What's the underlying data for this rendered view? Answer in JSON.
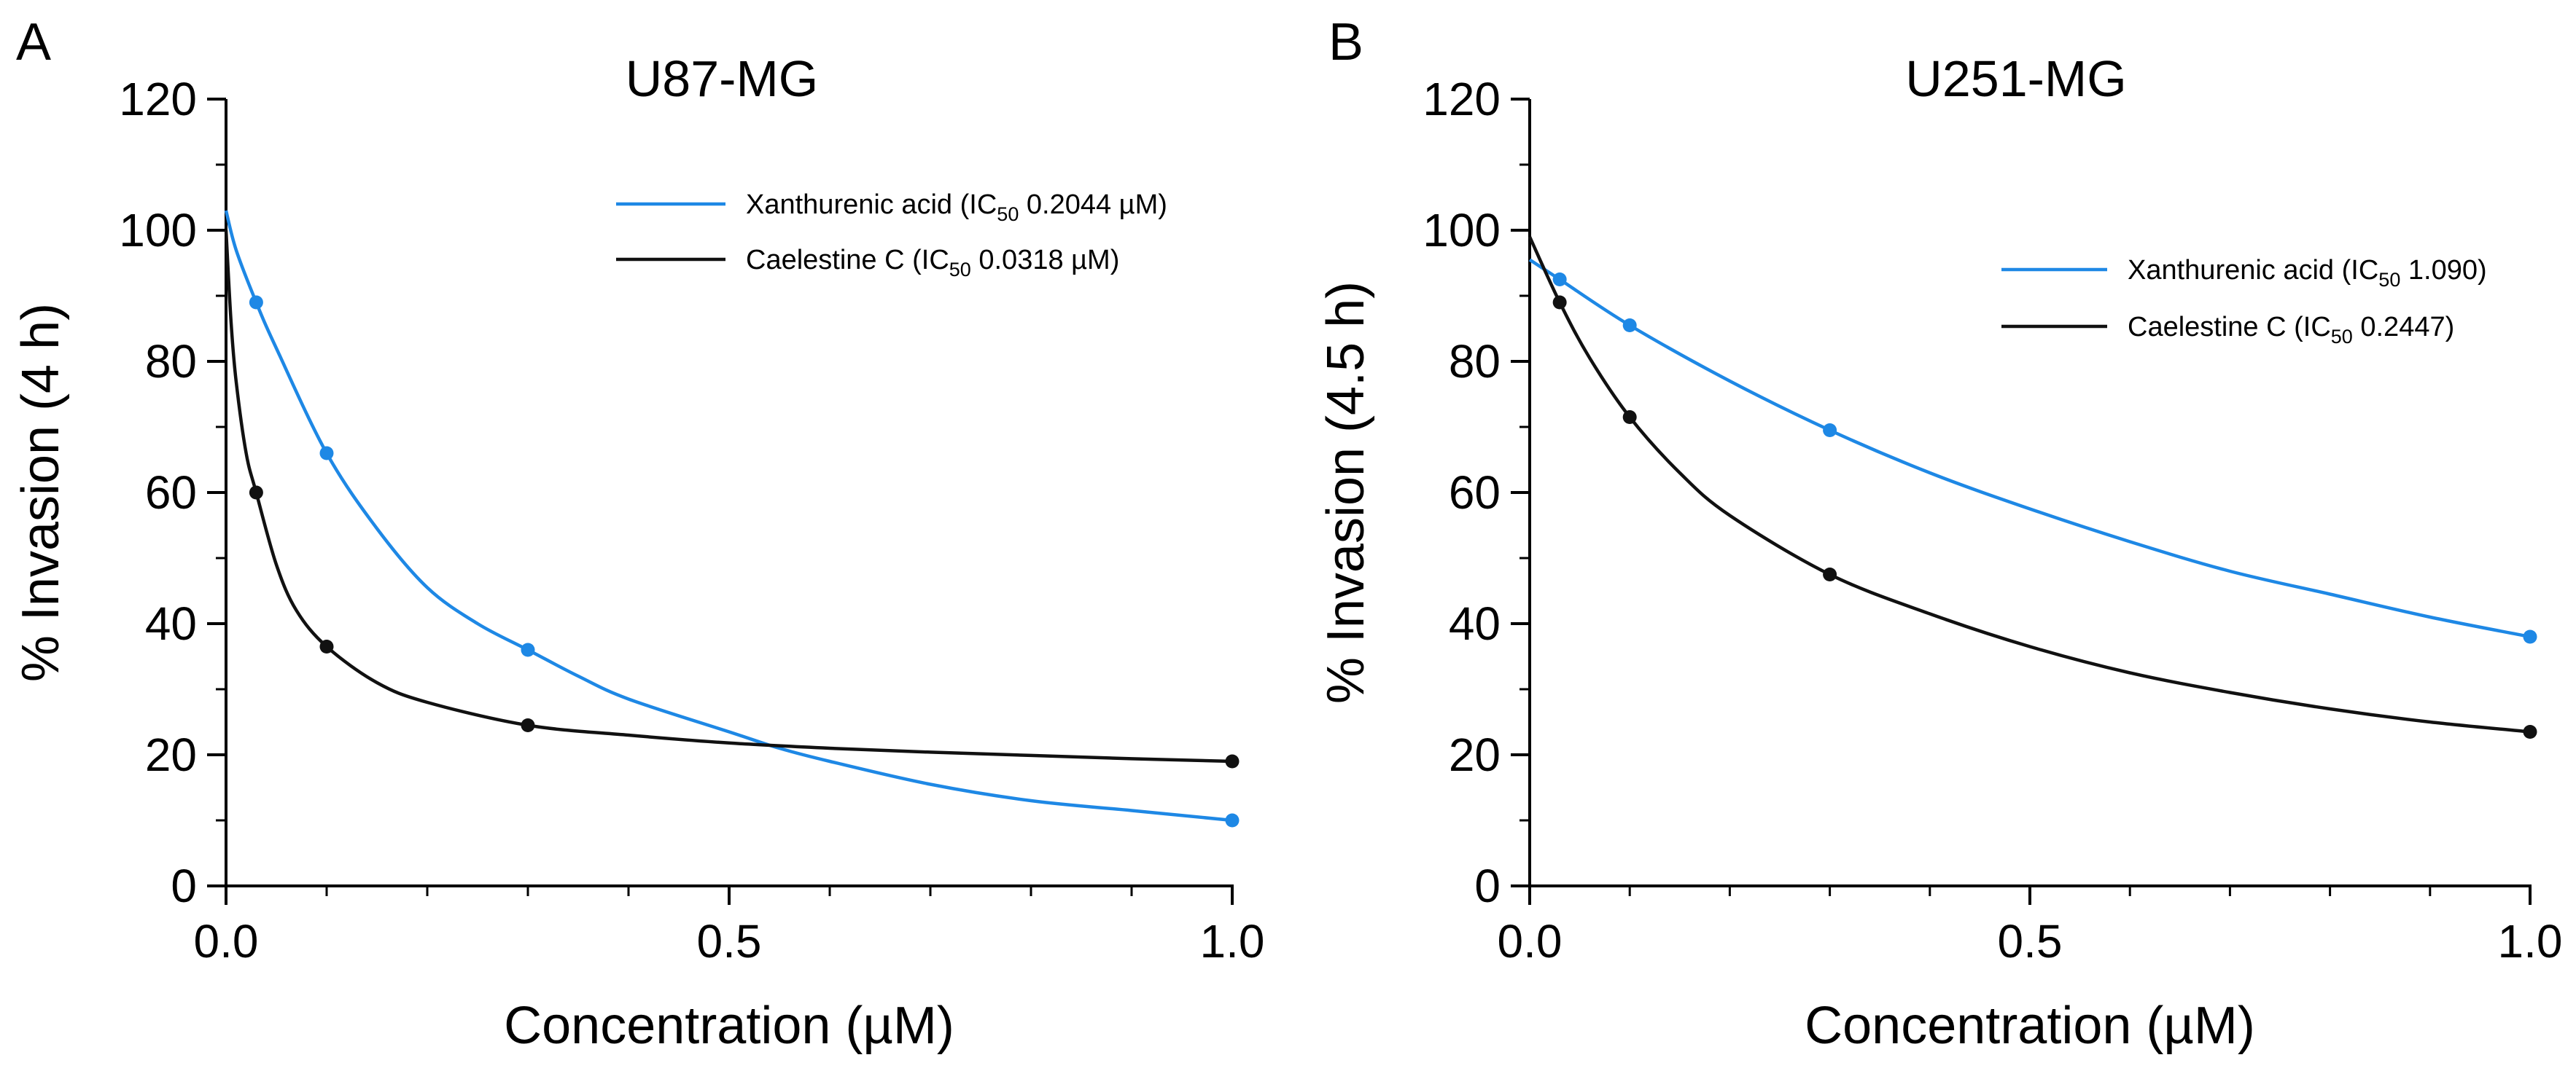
{
  "colors": {
    "xanthurenic": "#1e88e5",
    "caelestine": "#111111",
    "axis": "#000000"
  },
  "chart_data": [
    {
      "type": "line",
      "panel_letter": "A",
      "title": "U87-MG",
      "xlabel": "Concentration (µM)",
      "ylabel": "% Invasion (4 h)",
      "xlim": [
        0,
        1.0
      ],
      "ylim": [
        0,
        120
      ],
      "x_ticks": [
        "0.0",
        "0.5",
        "1.0"
      ],
      "y_ticks": [
        "0",
        "20",
        "40",
        "60",
        "80",
        "100",
        "120"
      ],
      "legend_position": "top-right",
      "series": [
        {
          "key": "xanthurenic",
          "name": "Xanthurenic acid",
          "legend_prefix": "Xanthurenic acid (IC",
          "legend_sub": "50",
          "legend_suffix": " 0.2044 µM)",
          "color": "#1e88e5",
          "x": [
            0.03,
            0.1,
            0.3,
            1.0
          ],
          "values": [
            89,
            66,
            36,
            10
          ],
          "curve_x": [
            0,
            0.01,
            0.03,
            0.05,
            0.1,
            0.15,
            0.2,
            0.25,
            0.3,
            0.35,
            0.4,
            0.5,
            0.55,
            0.6,
            0.7,
            0.8,
            0.9,
            1.0
          ],
          "curve_y": [
            103,
            97,
            89,
            82,
            66,
            54.5,
            45.5,
            40,
            36,
            32,
            28.5,
            23.5,
            21,
            19,
            15.5,
            13,
            11.5,
            10
          ]
        },
        {
          "key": "caelestine",
          "name": "Caelestine C",
          "legend_prefix": "Caelestine C (IC",
          "legend_sub": "50",
          "legend_suffix": " 0.0318 µM)",
          "color": "#111111",
          "x": [
            0.03,
            0.1,
            0.3,
            1.0
          ],
          "values": [
            60,
            36.5,
            24.5,
            19
          ],
          "curve_x": [
            0,
            0.005,
            0.01,
            0.02,
            0.03,
            0.05,
            0.07,
            0.1,
            0.15,
            0.2,
            0.3,
            0.4,
            0.5,
            0.6,
            0.7,
            0.8,
            0.9,
            1.0
          ],
          "curve_y": [
            100,
            86,
            77,
            66,
            60,
            49,
            42,
            36.5,
            31,
            28,
            24.5,
            23,
            21.8,
            21,
            20.4,
            19.9,
            19.4,
            19
          ]
        }
      ]
    },
    {
      "type": "line",
      "panel_letter": "B",
      "title": "U251-MG",
      "xlabel": "Concentration (µM)",
      "ylabel": "% Invasion (4.5 h)",
      "xlim": [
        0,
        1.0
      ],
      "ylim": [
        0,
        120
      ],
      "x_ticks": [
        "0.0",
        "0.5",
        "1.0"
      ],
      "y_ticks": [
        "0",
        "20",
        "40",
        "60",
        "80",
        "100",
        "120"
      ],
      "legend_position": "top-right",
      "series": [
        {
          "key": "xanthurenic",
          "name": "Xanthurenic acid",
          "legend_prefix": "Xanthurenic acid (IC",
          "legend_sub": "50",
          "legend_suffix": " 1.090)",
          "color": "#1e88e5",
          "x": [
            0.03,
            0.1,
            0.3,
            1.0
          ],
          "values": [
            92.5,
            85.5,
            69.5,
            38
          ],
          "curve_x": [
            0,
            0.03,
            0.1,
            0.2,
            0.3,
            0.4,
            0.5,
            0.6,
            0.7,
            0.8,
            0.9,
            1.0
          ],
          "curve_y": [
            95.5,
            92.5,
            85.5,
            77,
            69.5,
            63,
            57.5,
            52.5,
            48,
            44.5,
            41,
            38
          ]
        },
        {
          "key": "caelestine",
          "name": "Caelestine C",
          "legend_prefix": "Caelestine C (IC",
          "legend_sub": "50",
          "legend_suffix": " 0.2447)",
          "color": "#111111",
          "x": [
            0.03,
            0.1,
            0.3,
            1.0
          ],
          "values": [
            89,
            71.5,
            47.5,
            23.5
          ],
          "curve_x": [
            0,
            0.03,
            0.06,
            0.1,
            0.15,
            0.2,
            0.3,
            0.4,
            0.5,
            0.6,
            0.7,
            0.8,
            0.9,
            1.0
          ],
          "curve_y": [
            99,
            89,
            80.5,
            71.5,
            63,
            56.5,
            47.5,
            41.5,
            36.5,
            32.5,
            29.5,
            27,
            25,
            23.5
          ]
        }
      ]
    }
  ]
}
